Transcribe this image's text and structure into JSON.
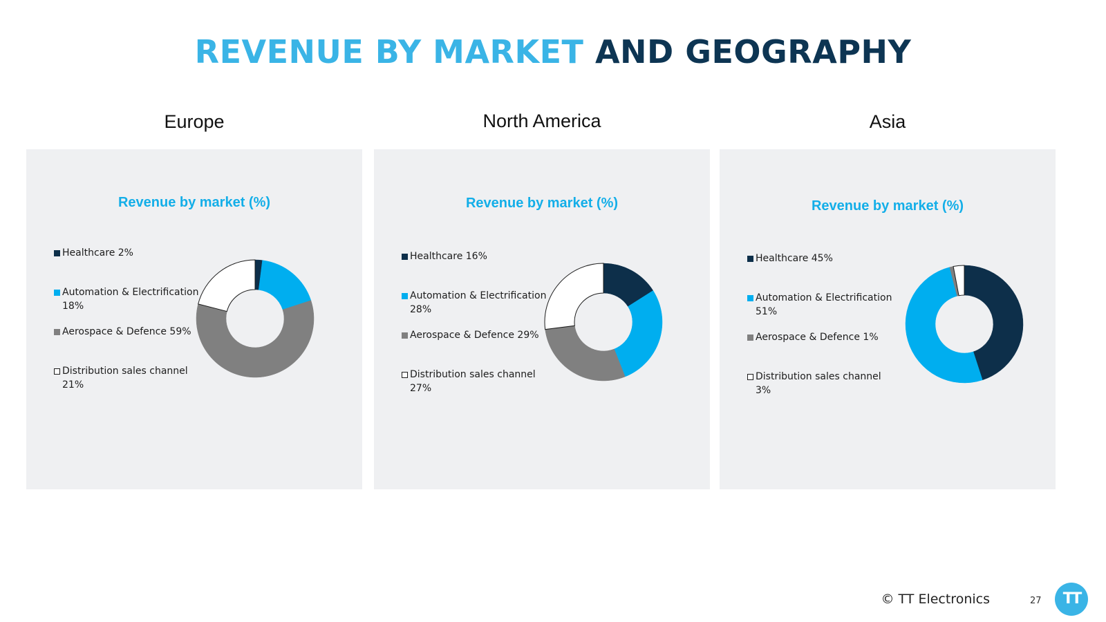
{
  "slide": {
    "title_part1": "REVENUE BY MARKET",
    "title_part2": "AND GEOGRAPHY",
    "footer": "© TT Electronics",
    "page_number": "27",
    "logo_text": "TT"
  },
  "colors": {
    "healthcare": "#0d2f4a",
    "automation": "#00aeef",
    "aerospace": "#808080",
    "distribution": "#ffffff",
    "title_accent": "#3ab4e6",
    "title_dark": "#0d3553",
    "panel_bg": "#eff0f2"
  },
  "chart_data": [
    {
      "type": "pie",
      "region": "Europe",
      "title": "Revenue by market (%)",
      "categories": [
        "Healthcare",
        "Automation & Electrification",
        "Aerospace & Defence",
        "Distribution sales channel"
      ],
      "legend_labels": [
        "Healthcare 2%",
        "Automation & Electrification 18%",
        "Aerospace & Defence 59%",
        "Distribution sales channel 21%"
      ],
      "values": [
        2,
        18,
        59,
        21
      ],
      "hole": "donut",
      "legend_position": "left"
    },
    {
      "type": "pie",
      "region": "North America",
      "title": "Revenue by market (%)",
      "categories": [
        "Healthcare",
        "Automation & Electrification",
        "Aerospace & Defence",
        "Distribution sales channel"
      ],
      "legend_labels": [
        "Healthcare 16%",
        "Automation & Electrification 28%",
        "Aerospace & Defence 29%",
        "Distribution sales channel 27%"
      ],
      "values": [
        16,
        28,
        29,
        27
      ],
      "hole": "donut",
      "legend_position": "left"
    },
    {
      "type": "pie",
      "region": "Asia",
      "title": "Revenue by market (%)",
      "categories": [
        "Healthcare",
        "Automation & Electrification",
        "Aerospace & Defence",
        "Distribution sales channel"
      ],
      "legend_labels": [
        "Healthcare 45%",
        "Automation & Electrification 51%",
        "Aerospace & Defence 1%",
        "Distribution sales channel 3%"
      ],
      "values": [
        45,
        51,
        1,
        3
      ],
      "hole": "donut",
      "legend_position": "left"
    }
  ]
}
